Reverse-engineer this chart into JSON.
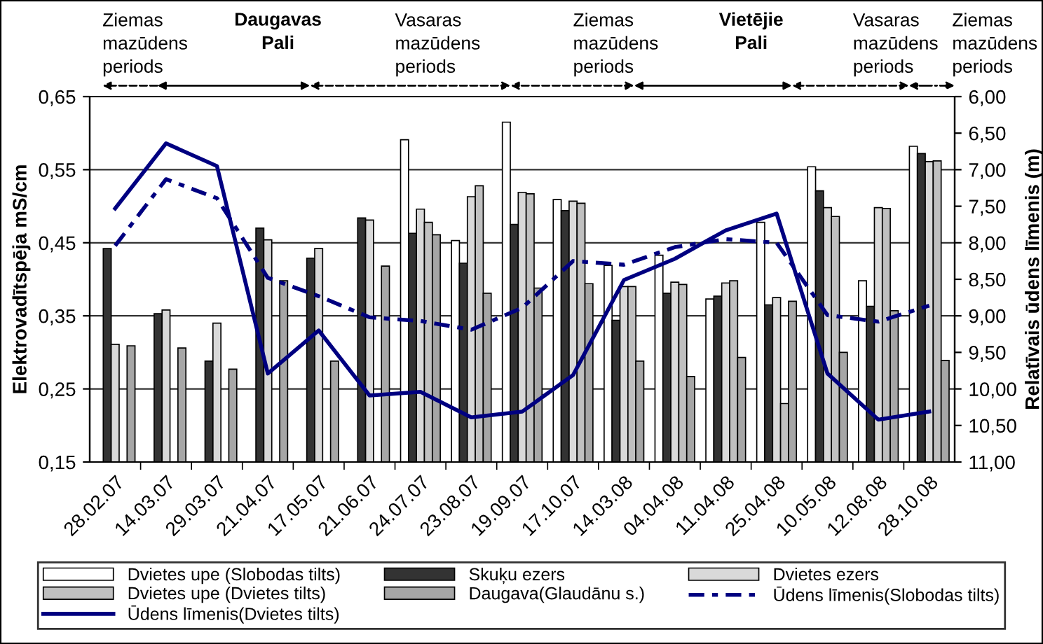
{
  "chart_data": {
    "type": "bar",
    "categories": [
      "28.02.07",
      "14.03.07",
      "29.03.07",
      "21.04.07",
      "17.05.07",
      "21.06.07",
      "24.07.07",
      "23.08.07",
      "19.09.07",
      "17.10.07",
      "14.03.08",
      "04.04.08",
      "11.04.08",
      "25.04.08",
      "10.05.08",
      "12.08.08",
      "28.10.08"
    ],
    "ylabel": "Elektrovadītspēja mS/cm",
    "y2label": "Relatīvais ūdens līmenis (m)",
    "annotations": [
      "Ziemas\nmazūdens\nperiods",
      "Daugavas\nPali",
      "Vasaras\nmazūdens\nperiods",
      "Ziemas\nmazūdens\nperiods",
      "Vietējie\nPali",
      "Vasaras\nmazūdens\nperiods",
      "Ziemas\nmazūdens\nperiods"
    ],
    "series": [
      {
        "name": "Dvietes upe (Slobodas tilts)",
        "color": "#ffffff",
        "values": [
          null,
          null,
          null,
          null,
          null,
          null,
          0.591,
          0.453,
          0.615,
          0.509,
          0.419,
          0.433,
          0.373,
          0.478,
          0.554,
          0.398,
          0.582
        ]
      },
      {
        "name": "Skuķu ezers",
        "color": "#333333",
        "values": [
          0.442,
          0.353,
          0.288,
          0.47,
          0.429,
          0.484,
          0.463,
          0.422,
          0.475,
          0.494,
          0.344,
          0.381,
          0.377,
          0.365,
          0.521,
          0.363,
          0.572
        ]
      },
      {
        "name": "Dvietes ezers",
        "color": "#d9d9d9",
        "values": [
          0.311,
          0.358,
          0.34,
          0.454,
          0.442,
          0.481,
          0.496,
          0.513,
          0.519,
          0.507,
          0.39,
          0.396,
          0.395,
          0.375,
          0.498,
          0.498,
          0.561
        ]
      },
      {
        "name": "Dvietes upe (Dvietes tilts)",
        "color": "#c0c0c0",
        "values": [
          null,
          null,
          null,
          null,
          null,
          null,
          0.478,
          0.528,
          0.517,
          0.504,
          0.39,
          0.393,
          0.398,
          0.23,
          0.486,
          0.497,
          0.562
        ]
      },
      {
        "name": "Daugava(Glaudānu s.)",
        "color": "#a6a6a6",
        "values": [
          0.309,
          0.306,
          0.277,
          0.398,
          0.288,
          0.418,
          0.461,
          0.381,
          0.388,
          0.394,
          0.288,
          0.267,
          0.293,
          0.37,
          0.3,
          0.357,
          0.289
        ]
      },
      {
        "name": "Ūdens līmenis(Slobodas tilts)",
        "type": "line",
        "axis": "y2",
        "line_style": "dashed",
        "color": "#000080",
        "values": [
          8.04,
          7.13,
          7.39,
          8.48,
          8.73,
          9.02,
          9.07,
          9.19,
          8.89,
          8.25,
          8.3,
          8.06,
          7.95,
          8.0,
          8.99,
          9.08,
          8.86
        ]
      },
      {
        "name": "Ūdens līmenis(Dvietes tilts)",
        "type": "line",
        "axis": "y2",
        "line_style": "solid",
        "color": "#000080",
        "values": [
          7.53,
          6.64,
          6.95,
          9.79,
          9.2,
          10.09,
          10.04,
          10.39,
          10.31,
          9.81,
          8.51,
          8.22,
          7.83,
          7.6,
          9.79,
          10.42,
          10.31
        ]
      }
    ],
    "ylim": [
      0.15,
      0.65
    ],
    "yticks": [
      {
        "value": 0.15,
        "label": "0,15"
      },
      {
        "value": 0.25,
        "label": "0,25"
      },
      {
        "value": 0.35,
        "label": "0,35"
      },
      {
        "value": 0.45,
        "label": "0,45"
      },
      {
        "value": 0.55,
        "label": "0,55"
      },
      {
        "value": 0.65,
        "label": "0,65"
      }
    ],
    "y2lim": [
      11.0,
      6.0
    ],
    "y2ticks": [
      {
        "value": 6.0,
        "label": "6,00"
      },
      {
        "value": 6.5,
        "label": "6,50"
      },
      {
        "value": 7.0,
        "label": "7,00"
      },
      {
        "value": 7.5,
        "label": "7,50"
      },
      {
        "value": 8.0,
        "label": "8,00"
      },
      {
        "value": 8.5,
        "label": "8,50"
      },
      {
        "value": 9.0,
        "label": "9,00"
      },
      {
        "value": 9.5,
        "label": "9,50"
      },
      {
        "value": 10.0,
        "label": "10,00"
      },
      {
        "value": 10.5,
        "label": "10,50"
      },
      {
        "value": 11.0,
        "label": "11,00"
      }
    ],
    "grid": "y",
    "legend": "bottom",
    "marker": "none"
  }
}
